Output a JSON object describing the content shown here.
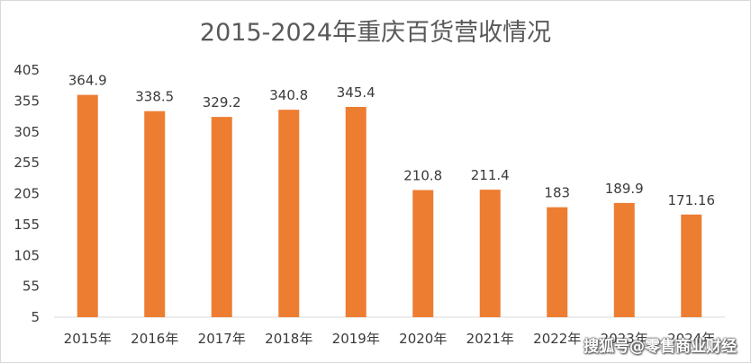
{
  "chart_data": {
    "type": "bar",
    "title": "2015-2024年重庆百货营收情况",
    "categories": [
      "2015年",
      "2016年",
      "2017年",
      "2018年",
      "2019年",
      "2020年",
      "2021年",
      "2022年",
      "2023年",
      "2024年"
    ],
    "values": [
      364.9,
      338.5,
      329.2,
      340.8,
      345.4,
      210.8,
      211.4,
      183,
      189.9,
      171.16
    ],
    "data_labels": [
      "364.9",
      "338.5",
      "329.2",
      "340.8",
      "345.4",
      "210.8",
      "211.4",
      "183",
      "189.9",
      "171.16"
    ],
    "y_ticks": [
      "5",
      "55",
      "105",
      "155",
      "205",
      "255",
      "305",
      "355",
      "405"
    ],
    "ylim": [
      5,
      405
    ],
    "xlabel": "",
    "ylabel": "",
    "grid": false,
    "legend": "none",
    "bar_color": "#ed7d31"
  },
  "watermark": "搜狐号@零售商业财经"
}
